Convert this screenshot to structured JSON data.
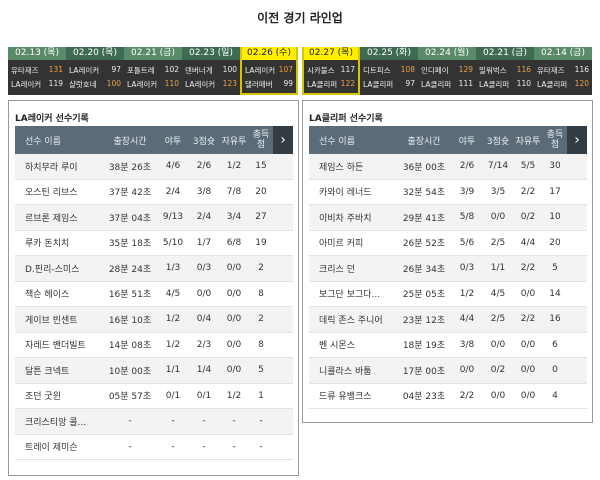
{
  "title": "이전 경기 라인업",
  "colors": {
    "win_score": "#f0a040",
    "selected_tab": "#ffee00",
    "header_bg": "#5b6c78"
  },
  "left_games": [
    {
      "date": "02.13 (목)",
      "t1": "유타재즈",
      "s1": "131",
      "w1": true,
      "t2": "LA레이커",
      "s2": "119",
      "w2": false,
      "selected": false
    },
    {
      "date": "02.20 (목)",
      "t1": "LA레이커",
      "s1": "97",
      "w1": false,
      "t2": "샬럿호네",
      "s2": "100",
      "w2": true,
      "selected": false
    },
    {
      "date": "02.21 (금)",
      "t1": "포틀트레",
      "s1": "102",
      "w1": false,
      "t2": "LA레이커",
      "s2": "110",
      "w2": true,
      "selected": false
    },
    {
      "date": "02.23 (일)",
      "t1": "덴버너게",
      "s1": "100",
      "w1": false,
      "t2": "LA레이커",
      "s2": "123",
      "w2": true,
      "selected": false
    },
    {
      "date": "02.26 (수)",
      "t1": "LA레이커",
      "s1": "107",
      "w1": true,
      "t2": "댈러매버",
      "s2": "99",
      "w2": false,
      "selected": true
    }
  ],
  "right_games": [
    {
      "date": "02.27 (목)",
      "t1": "시카불스",
      "s1": "117",
      "w1": false,
      "t2": "LA클리퍼",
      "s2": "122",
      "w2": true,
      "selected": true
    },
    {
      "date": "02.25 (화)",
      "t1": "디트피스",
      "s1": "108",
      "w1": true,
      "t2": "LA클리퍼",
      "s2": "97",
      "w2": false,
      "selected": false
    },
    {
      "date": "02.24 (월)",
      "t1": "인디페이",
      "s1": "129",
      "w1": true,
      "t2": "LA클리퍼",
      "s2": "111",
      "w2": false,
      "selected": false
    },
    {
      "date": "02.21 (금)",
      "t1": "밀워벅스",
      "s1": "116",
      "w1": true,
      "t2": "LA클리퍼",
      "s2": "110",
      "w2": false,
      "selected": false
    },
    {
      "date": "02.14 (금)",
      "t1": "유타재즈",
      "s1": "116",
      "w1": false,
      "t2": "LA클리퍼",
      "s2": "120",
      "w2": true,
      "selected": false
    }
  ],
  "columns": [
    "선수 이름",
    "출장시간",
    "야투",
    "3점슛",
    "자유투",
    "총득점"
  ],
  "next_icon": "chevron-right-icon",
  "left_panel": {
    "title": "LA레이커 선수기록",
    "rows": [
      [
        "하치무라 루이",
        "38분 26초",
        "4/6",
        "2/6",
        "1/2",
        "15"
      ],
      [
        "오스틴 리브스",
        "37분 42초",
        "2/4",
        "3/8",
        "7/8",
        "20"
      ],
      [
        "르브론 제임스",
        "37분 04초",
        "9/13",
        "2/4",
        "3/4",
        "27"
      ],
      [
        "루카 돈치치",
        "35분 18초",
        "5/10",
        "1/7",
        "6/8",
        "19"
      ],
      [
        "D.핀리-스미스",
        "28분 24초",
        "1/3",
        "0/3",
        "0/0",
        "2"
      ],
      [
        "잭슨 헤이스",
        "16분 51초",
        "4/5",
        "0/0",
        "0/0",
        "8"
      ],
      [
        "게이브 빈센트",
        "16분 10초",
        "1/2",
        "0/4",
        "0/0",
        "2"
      ],
      [
        "자레드 밴더빌트",
        "14분 08초",
        "1/2",
        "2/3",
        "0/0",
        "8"
      ],
      [
        "달튼 크넥트",
        "10분 00초",
        "1/1",
        "1/4",
        "0/0",
        "5"
      ],
      [
        "조던 굿윈",
        "05분 57초",
        "0/1",
        "0/1",
        "1/2",
        "1"
      ],
      [
        "크리스티앙 콜...",
        "-",
        "-",
        "-",
        "-",
        "-"
      ],
      [
        "트레이 제미슨",
        "-",
        "-",
        "-",
        "-",
        "-"
      ]
    ]
  },
  "right_panel": {
    "title": "LA클리퍼 선수기록",
    "rows": [
      [
        "제임스 하든",
        "36분 00초",
        "2/6",
        "7/14",
        "5/5",
        "30"
      ],
      [
        "카와이 레너드",
        "32분 54초",
        "3/9",
        "3/5",
        "2/2",
        "17"
      ],
      [
        "이비차 주바치",
        "29분 41초",
        "5/8",
        "0/0",
        "0/2",
        "10"
      ],
      [
        "아미르 커피",
        "26분 52초",
        "5/6",
        "2/5",
        "4/4",
        "20"
      ],
      [
        "크리스 던",
        "26분 34초",
        "0/3",
        "1/1",
        "2/2",
        "5"
      ],
      [
        "보그단 보그다...",
        "25분 05초",
        "1/2",
        "4/5",
        "0/0",
        "14"
      ],
      [
        "데릭 존스 주니어",
        "23분 12초",
        "4/4",
        "2/5",
        "2/2",
        "16"
      ],
      [
        "벤 시몬스",
        "18분 19초",
        "3/8",
        "0/0",
        "0/0",
        "6"
      ],
      [
        "니콜라스 바툼",
        "17분 00초",
        "0/0",
        "0/2",
        "0/0",
        "0"
      ],
      [
        "드류 유뱅크스",
        "04분 23초",
        "2/2",
        "0/0",
        "0/0",
        "4"
      ]
    ]
  }
}
